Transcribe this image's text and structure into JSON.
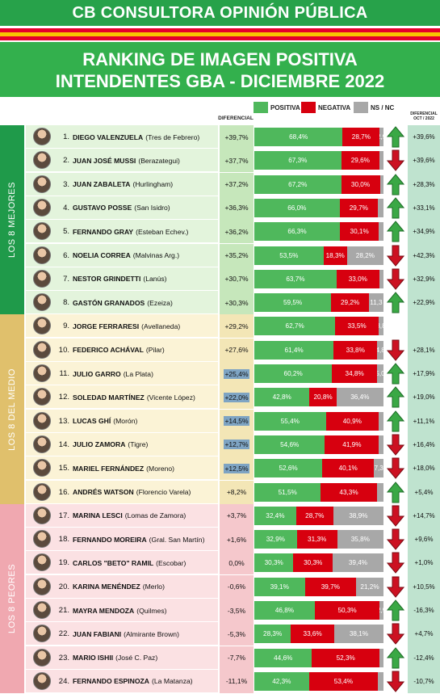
{
  "header": {
    "brand": "CB CONSULTORA OPINIÓN PÚBLICA"
  },
  "title": {
    "line1": "RANKING DE IMAGEN POSITIVA",
    "line2": "INTENDENTES GBA - DICIEMBRE 2022"
  },
  "legend": {
    "positiva": "POSITIVA",
    "negativa": "NEGATIVA",
    "nsnc": "NS / NC"
  },
  "columns": {
    "diferencial": "DIFERENCIAL",
    "diferencial_oct_1": "DIFERENCIAL",
    "diferencial_oct_2": "OCT / 2022"
  },
  "groups": [
    {
      "label": "LOS 8 MEJORES",
      "color": "#1f9a4a",
      "rows": [
        0,
        7
      ]
    },
    {
      "label": "LOS 8 DEL MEDIO",
      "color": "#e0c06c",
      "rows": [
        8,
        15
      ]
    },
    {
      "label": "LOS 8 PEORES",
      "color": "#f0a8b0",
      "rows": [
        16,
        23
      ]
    }
  ],
  "colors": {
    "positive": "#4fb85c",
    "negative": "#d7000f",
    "nsnc": "#a8a8a8",
    "up_arrow": "#3aa845",
    "down_arrow": "#cc1122"
  },
  "chart_data": {
    "type": "bar",
    "stacked": true,
    "orientation": "horizontal",
    "title": "RANKING DE IMAGEN POSITIVA INTENDENTES GBA - DICIEMBRE 2022",
    "legend": [
      "POSITIVA",
      "NEGATIVA",
      "NS / NC"
    ],
    "rows": [
      {
        "rank": "1.",
        "name": "DIEGO VALENZUELA",
        "district": "(Tres de Febrero)",
        "diff": "+39,7%",
        "pos": 68.4,
        "neg": 28.7,
        "ns": 2.9,
        "pos_label": "68,4%",
        "neg_label": "28,7%",
        "ns_label": "2,9",
        "trend": "up",
        "diff_oct": "+39,6%",
        "diff_hl": false
      },
      {
        "rank": "2.",
        "name": "JUAN JOSÉ MUSSI",
        "district": "(Berazategui)",
        "diff": "+37,7%",
        "pos": 67.3,
        "neg": 29.6,
        "ns": 3.1,
        "pos_label": "67,3%",
        "neg_label": "29,6%",
        "ns_label": "",
        "trend": "down",
        "diff_oct": "+39,6%",
        "diff_hl": false
      },
      {
        "rank": "3.",
        "name": "JUAN ZABALETA",
        "district": "(Hurlingham)",
        "diff": "+37,2%",
        "pos": 67.2,
        "neg": 30.0,
        "ns": 2.8,
        "pos_label": "67,2%",
        "neg_label": "30,0%",
        "ns_label": "",
        "trend": "up",
        "diff_oct": "+28,3%",
        "diff_hl": false
      },
      {
        "rank": "4.",
        "name": "GUSTAVO POSSE",
        "district": "(San Isidro)",
        "diff": "+36,3%",
        "pos": 66.0,
        "neg": 29.7,
        "ns": 4.3,
        "pos_label": "66,0%",
        "neg_label": "29,7%",
        "ns_label": "",
        "trend": "up",
        "diff_oct": "+33,1%",
        "diff_hl": false
      },
      {
        "rank": "5.",
        "name": "FERNANDO GRAY",
        "district": "(Esteban Echev.)",
        "diff": "+36,2%",
        "pos": 66.3,
        "neg": 30.1,
        "ns": 3.6,
        "pos_label": "66,3%",
        "neg_label": "30,1%",
        "ns_label": "",
        "trend": "up",
        "diff_oct": "+34,9%",
        "diff_hl": false
      },
      {
        "rank": "6.",
        "name": "NOELIA CORREA",
        "district": "(Malvinas Arg.)",
        "diff": "+35,2%",
        "pos": 53.5,
        "neg": 18.3,
        "ns": 28.2,
        "pos_label": "53,5%",
        "neg_label": "18,3%",
        "ns_label": "28,2%",
        "trend": "down",
        "diff_oct": "+42,3%",
        "diff_hl": false
      },
      {
        "rank": "7.",
        "name": "NESTOR GRINDETTI",
        "district": "(Lanús)",
        "diff": "+30,7%",
        "pos": 63.7,
        "neg": 33.0,
        "ns": 3.3,
        "pos_label": "63,7%",
        "neg_label": "33,0%",
        "ns_label": "",
        "trend": "down",
        "diff_oct": "+32,9%",
        "diff_hl": false
      },
      {
        "rank": "8.",
        "name": "GASTÓN GRANADOS",
        "district": "(Ezeiza)",
        "diff": "+30,3%",
        "pos": 59.5,
        "neg": 29.2,
        "ns": 11.3,
        "pos_label": "59,5%",
        "neg_label": "29,2%",
        "ns_label": "11,3",
        "trend": "up",
        "diff_oct": "+22,9%",
        "diff_hl": false
      },
      {
        "rank": "9.",
        "name": "JORGE FERRARESI",
        "district": "(Avellaneda)",
        "diff": "+29,2%",
        "pos": 62.7,
        "neg": 33.5,
        "ns": 3.8,
        "pos_label": "62,7%",
        "neg_label": "33,5%",
        "ns_label": "3,8",
        "trend": "none",
        "diff_oct": "",
        "diff_hl": false
      },
      {
        "rank": "10.",
        "name": "FEDERICO ACHÁVAL",
        "district": "(Pilar)",
        "diff": "+27,6%",
        "pos": 61.4,
        "neg": 33.8,
        "ns": 4.8,
        "pos_label": "61,4%",
        "neg_label": "33,8%",
        "ns_label": "4,8",
        "trend": "down",
        "diff_oct": "+28,1%",
        "diff_hl": false
      },
      {
        "rank": "11.",
        "name": "JULIO GARRO",
        "district": "(La Plata)",
        "diff": "+25,4%",
        "pos": 60.2,
        "neg": 34.8,
        "ns": 5.0,
        "pos_label": "60,2%",
        "neg_label": "34,8%",
        "ns_label": "5,0",
        "trend": "up",
        "diff_oct": "+17,9%",
        "diff_hl": true
      },
      {
        "rank": "12.",
        "name": "SOLEDAD MARTÍNEZ",
        "district": "(Vicente López)",
        "diff": "+22,0%",
        "pos": 42.8,
        "neg": 20.8,
        "ns": 36.4,
        "pos_label": "42,8%",
        "neg_label": "20,8%",
        "ns_label": "36,4%",
        "trend": "up",
        "diff_oct": "+19,0%",
        "diff_hl": true
      },
      {
        "rank": "13.",
        "name": "LUCAS GHÍ",
        "district": "(Morón)",
        "diff": "+14,5%",
        "pos": 55.4,
        "neg": 40.9,
        "ns": 3.7,
        "pos_label": "55,4%",
        "neg_label": "40,9%",
        "ns_label": "",
        "trend": "up",
        "diff_oct": "+11,1%",
        "diff_hl": true
      },
      {
        "rank": "14.",
        "name": "JULIO ZAMORA",
        "district": "(Tigre)",
        "diff": "+12,7%",
        "pos": 54.6,
        "neg": 41.9,
        "ns": 3.5,
        "pos_label": "54,6%",
        "neg_label": "41,9%",
        "ns_label": "",
        "trend": "down",
        "diff_oct": "+16,4%",
        "diff_hl": true
      },
      {
        "rank": "15.",
        "name": "MARIEL FERNÁNDEZ",
        "district": "(Moreno)",
        "diff": "+12,5%",
        "pos": 52.6,
        "neg": 40.1,
        "ns": 7.3,
        "pos_label": "52,6%",
        "neg_label": "40,1%",
        "ns_label": "7,3",
        "trend": "down",
        "diff_oct": "+18,0%",
        "diff_hl": true
      },
      {
        "rank": "16.",
        "name": "ANDRÉS WATSON",
        "district": "(Florencio Varela)",
        "diff": "+8,2%",
        "pos": 51.5,
        "neg": 43.3,
        "ns": 5.2,
        "pos_label": "51,5%",
        "neg_label": "43,3%",
        "ns_label": "",
        "trend": "up",
        "diff_oct": "+5,4%",
        "diff_hl": false
      },
      {
        "rank": "17.",
        "name": "MARINA LESCI",
        "district": "(Lomas de Zamora)",
        "diff": "+3,7%",
        "pos": 32.4,
        "neg": 28.7,
        "ns": 38.9,
        "pos_label": "32,4%",
        "neg_label": "28,7%",
        "ns_label": "38,9%",
        "trend": "down",
        "diff_oct": "+14,7%",
        "diff_hl": false
      },
      {
        "rank": "18.",
        "name": "FERNANDO MOREIRA",
        "district": "(Gral. San Martín)",
        "diff": "+1,6%",
        "pos": 32.9,
        "neg": 31.3,
        "ns": 35.8,
        "pos_label": "32,9%",
        "neg_label": "31,3%",
        "ns_label": "35,8%",
        "trend": "down",
        "diff_oct": "+9,6%",
        "diff_hl": false
      },
      {
        "rank": "19.",
        "name": "CARLOS \"BETO\" RAMIL",
        "district": "(Escobar)",
        "diff": "0,0%",
        "pos": 30.3,
        "neg": 30.3,
        "ns": 39.4,
        "pos_label": "30,3%",
        "neg_label": "30,3%",
        "ns_label": "39,4%",
        "trend": "down",
        "diff_oct": "+1,0%",
        "diff_hl": false
      },
      {
        "rank": "20.",
        "name": "KARINA MENÉNDEZ",
        "district": "(Merlo)",
        "diff": "-0,6%",
        "pos": 39.1,
        "neg": 39.7,
        "ns": 21.2,
        "pos_label": "39,1%",
        "neg_label": "39,7%",
        "ns_label": "21,2%",
        "trend": "down",
        "diff_oct": "+10,5%",
        "diff_hl": false
      },
      {
        "rank": "21.",
        "name": "MAYRA MENDOZA",
        "district": "(Quilmes)",
        "diff": "-3,5%",
        "pos": 46.8,
        "neg": 50.3,
        "ns": 2.9,
        "pos_label": "46,8%",
        "neg_label": "50,3%",
        "ns_label": "2,9",
        "trend": "up",
        "diff_oct": "-16,3%",
        "diff_hl": false
      },
      {
        "rank": "22.",
        "name": "JUAN FABIANI",
        "district": "(Almirante Brown)",
        "diff": "-5,3%",
        "pos": 28.3,
        "neg": 33.6,
        "ns": 38.1,
        "pos_label": "28,3%",
        "neg_label": "33,6%",
        "ns_label": "38,1%",
        "trend": "down",
        "diff_oct": "+4,7%",
        "diff_hl": false
      },
      {
        "rank": "23.",
        "name": "MARIO ISHII",
        "district": "(José C. Paz)",
        "diff": "-7,7%",
        "pos": 44.6,
        "neg": 52.3,
        "ns": 3.1,
        "pos_label": "44,6%",
        "neg_label": "52,3%",
        "ns_label": "",
        "trend": "up",
        "diff_oct": "-12,4%",
        "diff_hl": false
      },
      {
        "rank": "24.",
        "name": "FERNANDO ESPINOZA",
        "district": "(La Matanza)",
        "diff": "-11,1%",
        "pos": 42.3,
        "neg": 53.4,
        "ns": 4.3,
        "pos_label": "42,3%",
        "neg_label": "53,4%",
        "ns_label": "",
        "trend": "down",
        "diff_oct": "-10,7%",
        "diff_hl": false
      }
    ]
  }
}
